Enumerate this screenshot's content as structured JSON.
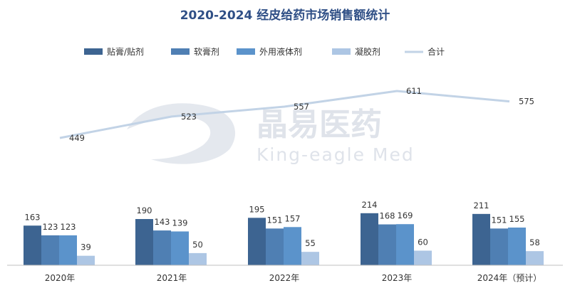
{
  "watermark": {
    "brand_cn": "晶易医药",
    "brand_en": "King-eagle Med"
  },
  "chart_data": {
    "type": "bar",
    "title": "2020-2024 经皮给药市场销售额统计",
    "categories": [
      "2020年",
      "2021年",
      "2022年",
      "2023年",
      "2024年（预计）"
    ],
    "series": [
      {
        "name": "贴膏/贴剂",
        "kind": "bar",
        "color": "#3d6491",
        "values": [
          163,
          190,
          195,
          214,
          211
        ]
      },
      {
        "name": "软膏剂",
        "kind": "bar",
        "color": "#4f7fb3",
        "values": [
          123,
          143,
          151,
          168,
          151
        ]
      },
      {
        "name": "外用液体剂",
        "kind": "bar",
        "color": "#5b93cb",
        "values": [
          123,
          139,
          157,
          169,
          155
        ]
      },
      {
        "name": "凝胶剂",
        "kind": "bar",
        "color": "#adc6e4",
        "values": [
          39,
          50,
          55,
          60,
          58
        ]
      },
      {
        "name": "合计",
        "kind": "line",
        "color": "#c2d3e6",
        "values": [
          449,
          523,
          557,
          611,
          575
        ]
      }
    ],
    "legend_position": "top",
    "grid": false
  }
}
